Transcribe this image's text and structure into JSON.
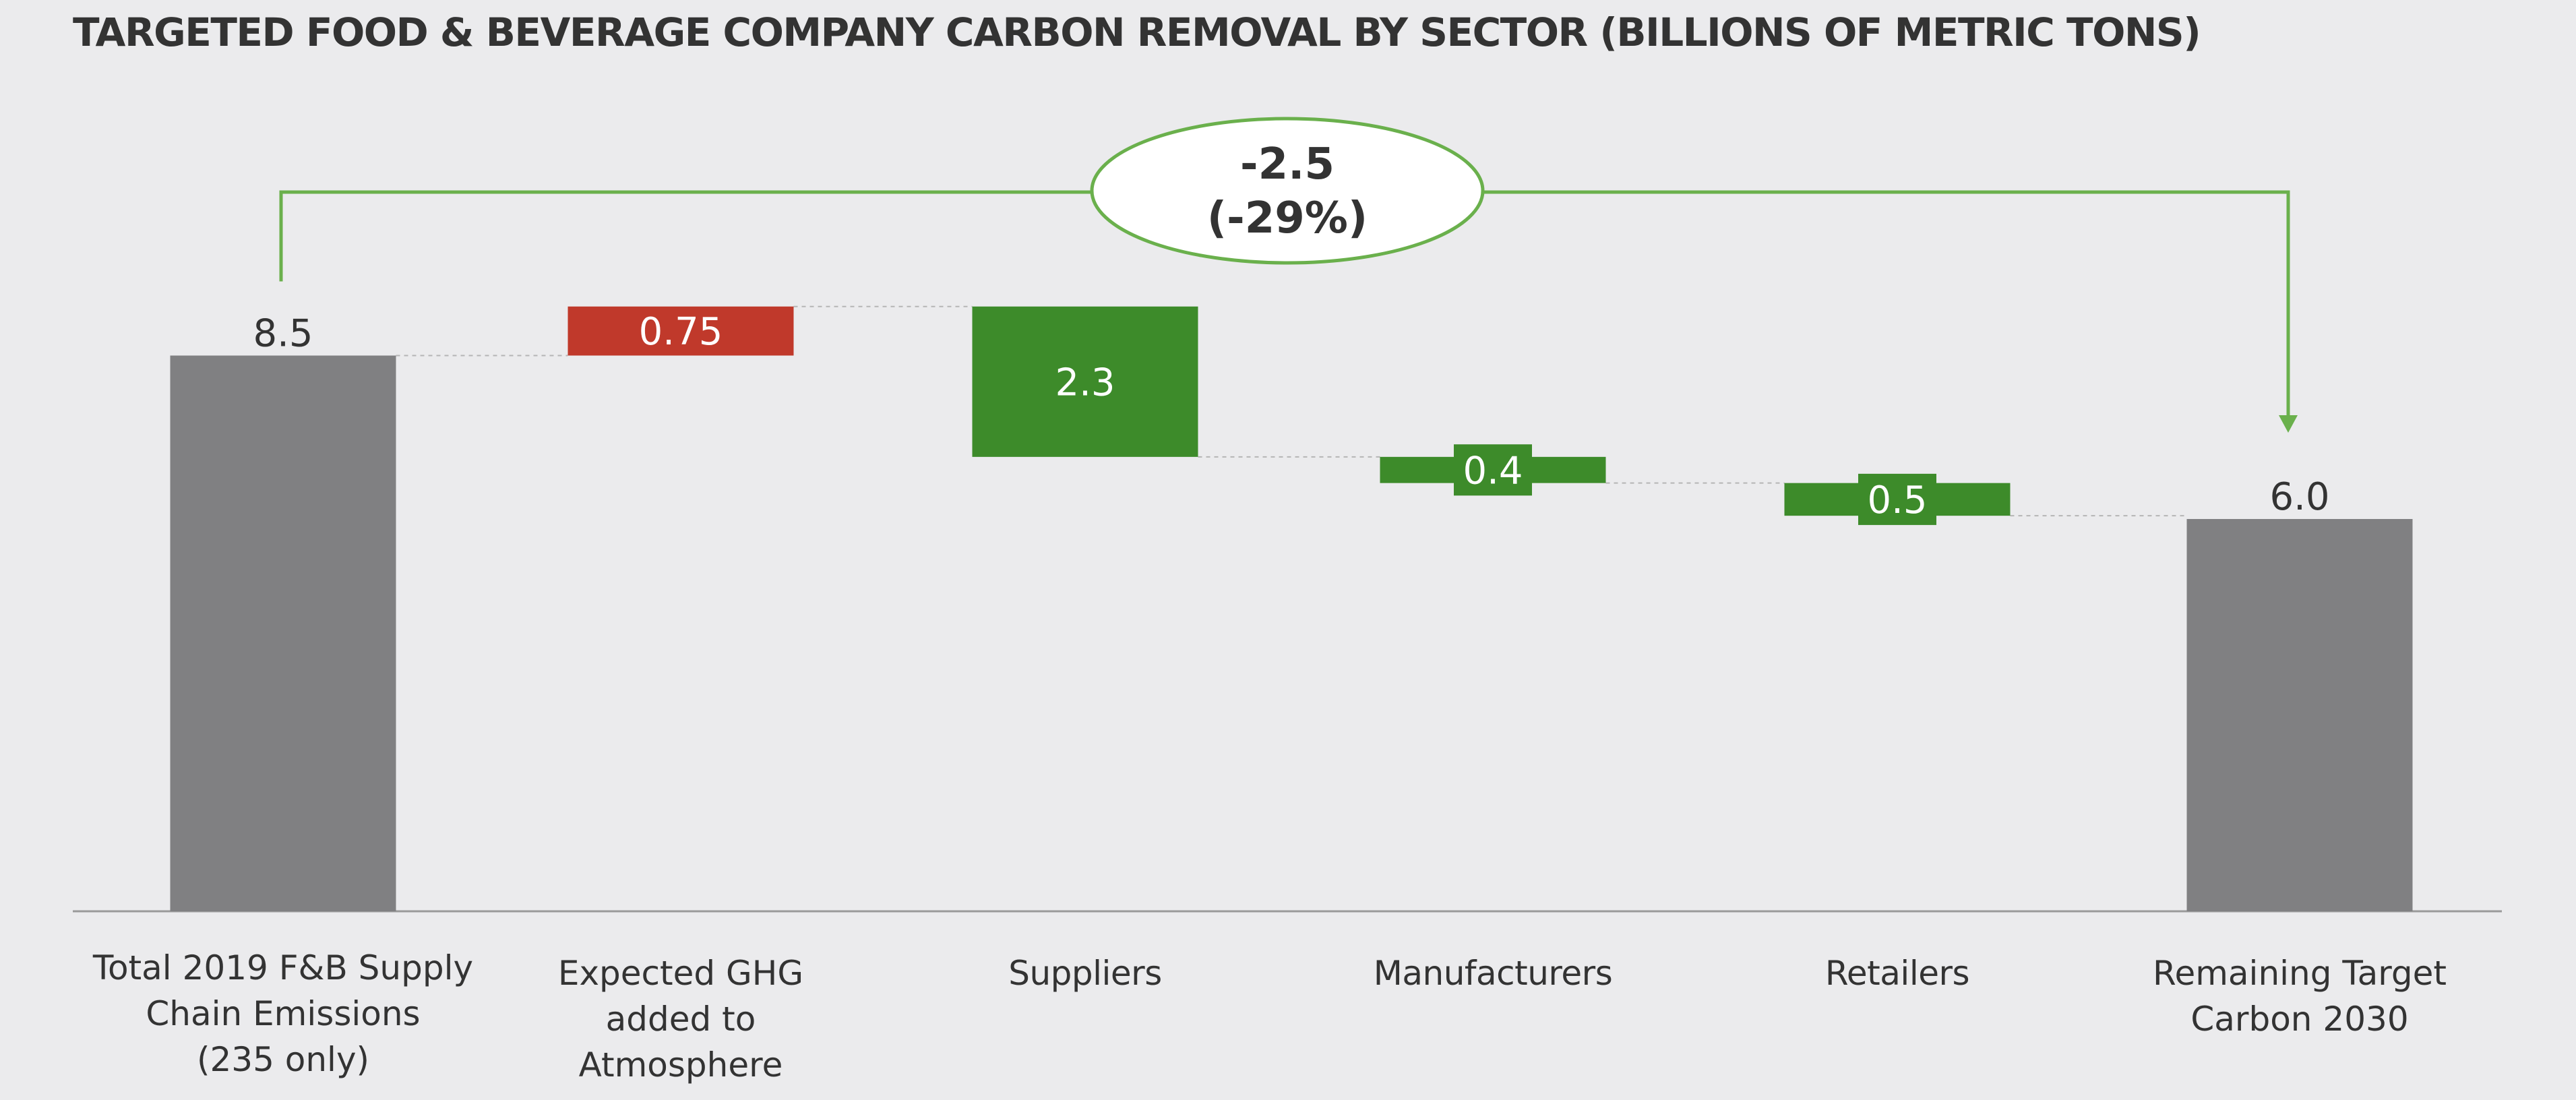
{
  "chart_data": {
    "type": "waterfall",
    "title": "TARGETED FOOD & BEVERAGE COMPANY CARBON REMOVAL BY SECTOR (BILLIONS OF METRIC TONS)",
    "unit": "billions of metric tons",
    "ylim": [
      0,
      9
    ],
    "categories": [
      [
        "Total 2019 F&B Supply",
        "Chain Emissions",
        "(235 only)"
      ],
      [
        "Expected GHG",
        "added to",
        "Atmosphere"
      ],
      [
        "Suppliers"
      ],
      [
        "Manufacturers"
      ],
      [
        "Retailers"
      ],
      [
        "Remaining Target",
        "Carbon 2030"
      ]
    ],
    "steps": [
      {
        "kind": "total",
        "value": 8.5,
        "label": "8.5"
      },
      {
        "kind": "increase",
        "value": 0.75,
        "label": "0.75"
      },
      {
        "kind": "decrease",
        "value": 2.3,
        "label": "2.3"
      },
      {
        "kind": "decrease",
        "value": 0.4,
        "label": "0.4"
      },
      {
        "kind": "decrease",
        "value": 0.5,
        "label": "0.5"
      },
      {
        "kind": "total",
        "value": 6.0,
        "label": "6.0"
      }
    ],
    "annotation": {
      "line1": "-2.5",
      "line2": "(-29%)",
      "from": 0,
      "to": 5
    },
    "colors": {
      "total": "#808082",
      "increase": "#c0392b",
      "decrease": "#3d8b2a",
      "connector": "#b5b5b5",
      "annotation": "#6ab04c",
      "axis": "#9a9a9a",
      "text": "#333333",
      "bar_label_light": "#ffffff"
    }
  }
}
